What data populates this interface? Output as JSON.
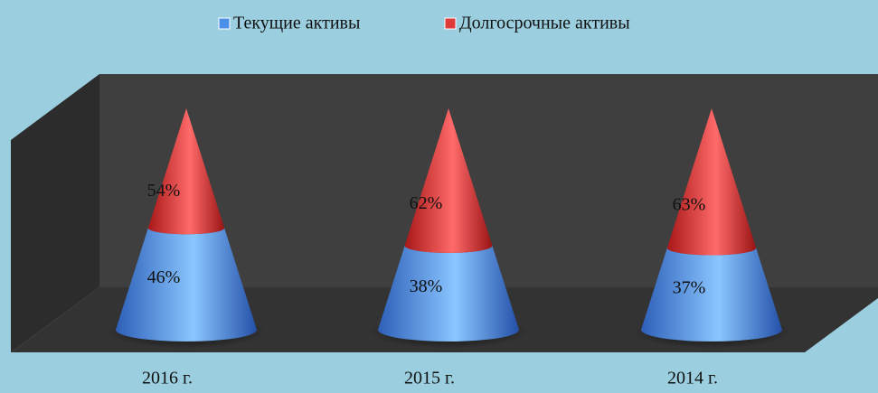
{
  "chart_data": {
    "type": "cone-stacked",
    "categories": [
      "2016 г.",
      "2015 г.",
      "2014 г."
    ],
    "series": [
      {
        "name": "Текущие активы",
        "color": "#4a8fe8",
        "values": [
          46,
          38,
          37
        ],
        "value_labels": [
          "46%",
          "38%",
          "37%"
        ]
      },
      {
        "name": "Долгосрочные активы",
        "color": "#e03a3a",
        "values": [
          54,
          62,
          63
        ],
        "value_labels": [
          "54%",
          "62%",
          "63%"
        ]
      }
    ],
    "legend": "top"
  }
}
